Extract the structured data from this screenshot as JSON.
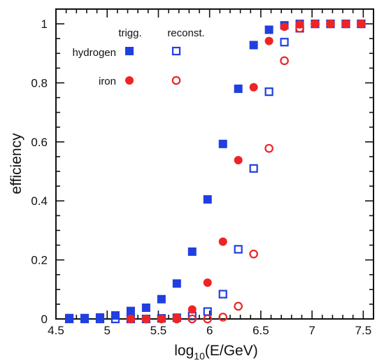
{
  "chart_data": {
    "type": "scatter",
    "xlabel_main": "log",
    "xlabel_sub": "10",
    "xlabel_rest": "(E/GeV)",
    "ylabel": "efficiency",
    "xlim": [
      4.5,
      7.6
    ],
    "ylim": [
      0,
      1.05
    ],
    "x_ticks": [
      4.5,
      5,
      5.5,
      6,
      6.5,
      7,
      7.5
    ],
    "x_tick_labels": [
      "4.5",
      "5",
      "5.5",
      "6",
      "6.5",
      "7",
      "7.5"
    ],
    "y_ticks": [
      0,
      0.2,
      0.4,
      0.6,
      0.8,
      1
    ],
    "y_tick_labels": [
      "0",
      "0.2",
      "0.4",
      "0.6",
      "0.8",
      "1"
    ],
    "legend": {
      "col_trigg": "trigg.",
      "col_reconst": "reconst.",
      "row_hydrogen": "hydrogen",
      "row_iron": "iron"
    },
    "colors": {
      "hydrogen": "#1f3fe0",
      "iron": "#ee2424"
    },
    "series": [
      {
        "name": "hydrogen trigg.",
        "marker": "filled-square",
        "x": [
          4.63,
          4.78,
          4.93,
          5.08,
          5.23,
          5.38,
          5.53,
          5.68,
          5.83,
          5.98,
          6.13,
          6.28,
          6.43,
          6.58,
          6.73,
          6.88,
          7.03,
          7.18,
          7.33,
          7.48
        ],
        "y": [
          0.003,
          0.003,
          0.005,
          0.012,
          0.027,
          0.038,
          0.067,
          0.12,
          0.228,
          0.405,
          0.593,
          0.78,
          0.928,
          0.98,
          0.995,
          1.0,
          1.0,
          1.0,
          1.0,
          1.0
        ]
      },
      {
        "name": "hydrogen reconst.",
        "marker": "open-square",
        "x": [
          4.63,
          4.78,
          4.93,
          5.08,
          5.23,
          5.38,
          5.53,
          5.68,
          5.83,
          5.98,
          6.13,
          6.28,
          6.43,
          6.58,
          6.73,
          6.88,
          7.03,
          7.18,
          7.33,
          7.48
        ],
        "y": [
          0.0,
          0.0,
          0.0,
          0.0,
          0.0,
          0.0,
          0.002,
          0.004,
          0.01,
          0.025,
          0.084,
          0.236,
          0.51,
          0.77,
          0.938,
          0.985,
          1.0,
          1.0,
          1.0,
          1.0
        ]
      },
      {
        "name": "iron trigg.",
        "marker": "filled-circle",
        "x": [
          5.23,
          5.38,
          5.53,
          5.68,
          5.83,
          5.98,
          6.13,
          6.28,
          6.43,
          6.58,
          6.73,
          6.88,
          7.03,
          7.18,
          7.33,
          7.48
        ],
        "y": [
          0.0,
          0.0,
          0.0,
          0.005,
          0.032,
          0.123,
          0.262,
          0.538,
          0.785,
          0.942,
          0.99,
          0.998,
          1.0,
          1.0,
          1.0,
          1.0
        ]
      },
      {
        "name": "iron reconst.",
        "marker": "open-circle",
        "x": [
          5.23,
          5.38,
          5.53,
          5.68,
          5.83,
          5.98,
          6.13,
          6.28,
          6.43,
          6.58,
          6.73,
          6.88,
          7.03,
          7.18,
          7.33,
          7.48
        ],
        "y": [
          0.0,
          0.0,
          0.0,
          0.0,
          0.0,
          0.0,
          0.006,
          0.043,
          0.22,
          0.578,
          0.875,
          0.985,
          1.0,
          1.0,
          1.0,
          1.0
        ]
      }
    ]
  }
}
